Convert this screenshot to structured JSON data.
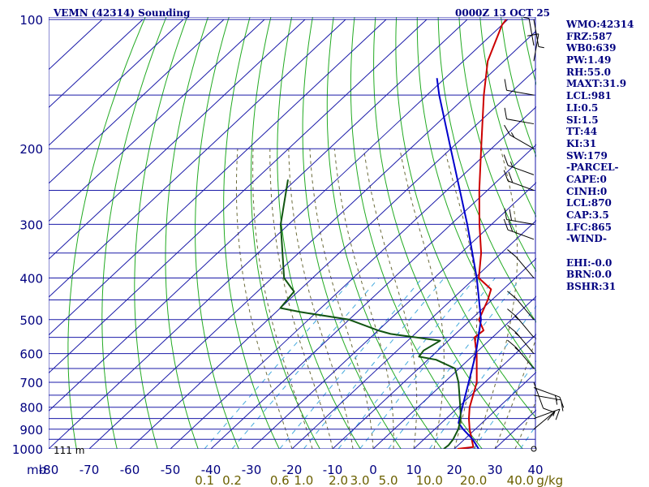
{
  "header": {
    "station": "VEMN (42314) Sounding",
    "time": "0000Z 13 OCT 25"
  },
  "indices": [
    "WMO:42314",
    "FRZ:587",
    "WB0:639",
    "PW:1.49",
    "RH:55.0",
    "MAXT:31.9",
    "LCL:981",
    "LI:0.5",
    "SI:1.5",
    "TT:44",
    "KI:31",
    "SW:179",
    "-PARCEL-",
    "CAPE:0",
    "CINH:0",
    "LCL:870",
    "CAP:3.5",
    "LFC:865",
    "-WIND-",
    "",
    "EHI:-0.0",
    "BRN:0.0",
    "BSHR:31"
  ],
  "colors": {
    "grid": "#1a1aa8",
    "dry_adiabat": "#22aa22",
    "moist_adiabat": "#6b6b3a",
    "mixing_ratio": "#44aadd",
    "temperature": "#cc0000",
    "dewpoint": "#115511",
    "parcel": "#0000cc",
    "labels": "#000080",
    "mixing_labels": "#6b6000"
  },
  "chart_data": {
    "type": "line",
    "subtype": "skew-T log-P",
    "pressure_levels": [
      100,
      200,
      300,
      400,
      500,
      600,
      700,
      800,
      900,
      1000
    ],
    "pressure_tick_labels": [
      "100",
      "200",
      "300",
      "400",
      "500",
      "600",
      "700",
      "800",
      "900",
      "1000"
    ],
    "extra_isobars": [
      150,
      250,
      350,
      450,
      550,
      650,
      750,
      850,
      950
    ],
    "pressure_range": [
      100,
      1000
    ],
    "temperature_ticks": [
      -80,
      -70,
      -60,
      -50,
      -40,
      -30,
      -20,
      -10,
      0,
      10,
      20,
      30,
      40
    ],
    "temperature_tick_labels": [
      "-80",
      "-70",
      "-60",
      "-50",
      "-40",
      "-30",
      "-20",
      "-10",
      "0",
      "10",
      "20",
      "30",
      "40"
    ],
    "temperature_range": [
      -80,
      40
    ],
    "pressure_unit_label": "mb",
    "mixing_ratio_lines": [
      0.1,
      0.2,
      0.6,
      1.0,
      2.0,
      3.0,
      5.0,
      10.0,
      20.0,
      40.0
    ],
    "mixing_ratio_labels": [
      "0.1",
      "0.2",
      "0.6",
      "1.0",
      "2.0",
      "3.0",
      "5.0",
      "10.0",
      "20.0",
      "40.0"
    ],
    "mixing_ratio_unit_label": "g/kg",
    "surface_elevation_label": "111 m",
    "grid": true,
    "series": [
      {
        "key": "temperature",
        "points": [
          {
            "p": 1000,
            "t": 20.8
          },
          {
            "p": 990,
            "t": 24.2
          },
          {
            "p": 970,
            "t": 23.0
          },
          {
            "p": 900,
            "t": 18.6
          },
          {
            "p": 850,
            "t": 15.6
          },
          {
            "p": 800,
            "t": 12.8
          },
          {
            "p": 700,
            "t": 8.0
          },
          {
            "p": 600,
            "t": 0.4
          },
          {
            "p": 550,
            "t": -4.4
          },
          {
            "p": 530,
            "t": -4.0
          },
          {
            "p": 500,
            "t": -8.0
          },
          {
            "p": 450,
            "t": -11.0
          },
          {
            "p": 425,
            "t": -13.0
          },
          {
            "p": 400,
            "t": -19.0
          },
          {
            "p": 350,
            "t": -25.0
          },
          {
            "p": 300,
            "t": -33.0
          },
          {
            "p": 250,
            "t": -42.0
          },
          {
            "p": 200,
            "t": -52.5
          },
          {
            "p": 150,
            "t": -66.0
          },
          {
            "p": 125,
            "t": -74.0
          },
          {
            "p": 103,
            "t": -80.0
          },
          {
            "p": 100,
            "t": -80.4
          }
        ]
      },
      {
        "key": "parcel",
        "points": [
          {
            "p": 1000,
            "t": 26.0
          },
          {
            "p": 950,
            "t": 22.0
          },
          {
            "p": 900,
            "t": 17.0
          },
          {
            "p": 870,
            "t": 14.2
          },
          {
            "p": 800,
            "t": 11.0
          },
          {
            "p": 700,
            "t": 6.0
          },
          {
            "p": 600,
            "t": 0.2
          },
          {
            "p": 500,
            "t": -7.5
          },
          {
            "p": 400,
            "t": -19.5
          },
          {
            "p": 300,
            "t": -36.0
          },
          {
            "p": 200,
            "t": -60.0
          },
          {
            "p": 150,
            "t": -77.0
          },
          {
            "p": 137,
            "t": -82.0
          }
        ]
      },
      {
        "key": "dewpoint",
        "points": [
          {
            "p": 1000,
            "t": 17.4
          },
          {
            "p": 980,
            "t": 17.6
          },
          {
            "p": 950,
            "t": 17.2
          },
          {
            "p": 900,
            "t": 15.8
          },
          {
            "p": 850,
            "t": 13.6
          },
          {
            "p": 800,
            "t": 10.5
          },
          {
            "p": 700,
            "t": 3.5
          },
          {
            "p": 650,
            "t": -1.0
          },
          {
            "p": 620,
            "t": -8.0
          },
          {
            "p": 610,
            "t": -13.0
          },
          {
            "p": 590,
            "t": -13.5
          },
          {
            "p": 560,
            "t": -12.0
          },
          {
            "p": 540,
            "t": -26.0
          },
          {
            "p": 530,
            "t": -30.0
          },
          {
            "p": 500,
            "t": -40.0
          },
          {
            "p": 480,
            "t": -54.0
          },
          {
            "p": 470,
            "t": -60.0
          },
          {
            "p": 430,
            "t": -61.0
          },
          {
            "p": 420,
            "t": -63.0
          },
          {
            "p": 400,
            "t": -67.0
          },
          {
            "p": 300,
            "t": -82.0
          },
          {
            "p": 236,
            "t": -92.0
          }
        ]
      }
    ],
    "wind_barbs": [
      {
        "p": 100,
        "dir": 190,
        "kt": 5
      },
      {
        "p": 115,
        "dir": 10,
        "kt": 5
      },
      {
        "p": 125,
        "dir": 350,
        "kt": 10
      },
      {
        "p": 150,
        "dir": 80,
        "kt": 10
      },
      {
        "p": 175,
        "dir": 80,
        "kt": 10
      },
      {
        "p": 200,
        "dir": 60,
        "kt": 15
      },
      {
        "p": 230,
        "dir": 70,
        "kt": 15
      },
      {
        "p": 250,
        "dir": 70,
        "kt": 20
      },
      {
        "p": 300,
        "dir": 80,
        "kt": 20
      },
      {
        "p": 325,
        "dir": 70,
        "kt": 20
      },
      {
        "p": 400,
        "dir": 40,
        "kt": 10
      },
      {
        "p": 500,
        "dir": 40,
        "kt": 10
      },
      {
        "p": 550,
        "dir": 40,
        "kt": 15
      },
      {
        "p": 600,
        "dir": 40,
        "kt": 15
      },
      {
        "p": 650,
        "dir": 40,
        "kt": 15
      },
      {
        "p": 700,
        "dir": 200,
        "kt": 10
      },
      {
        "p": 720,
        "dir": 250,
        "kt": 15
      },
      {
        "p": 750,
        "dir": 260,
        "kt": 15
      },
      {
        "p": 850,
        "dir": 290,
        "kt": 15
      },
      {
        "p": 900,
        "dir": 310,
        "kt": 10
      },
      {
        "p": 1000,
        "dir": 0,
        "kt": 0
      }
    ]
  }
}
